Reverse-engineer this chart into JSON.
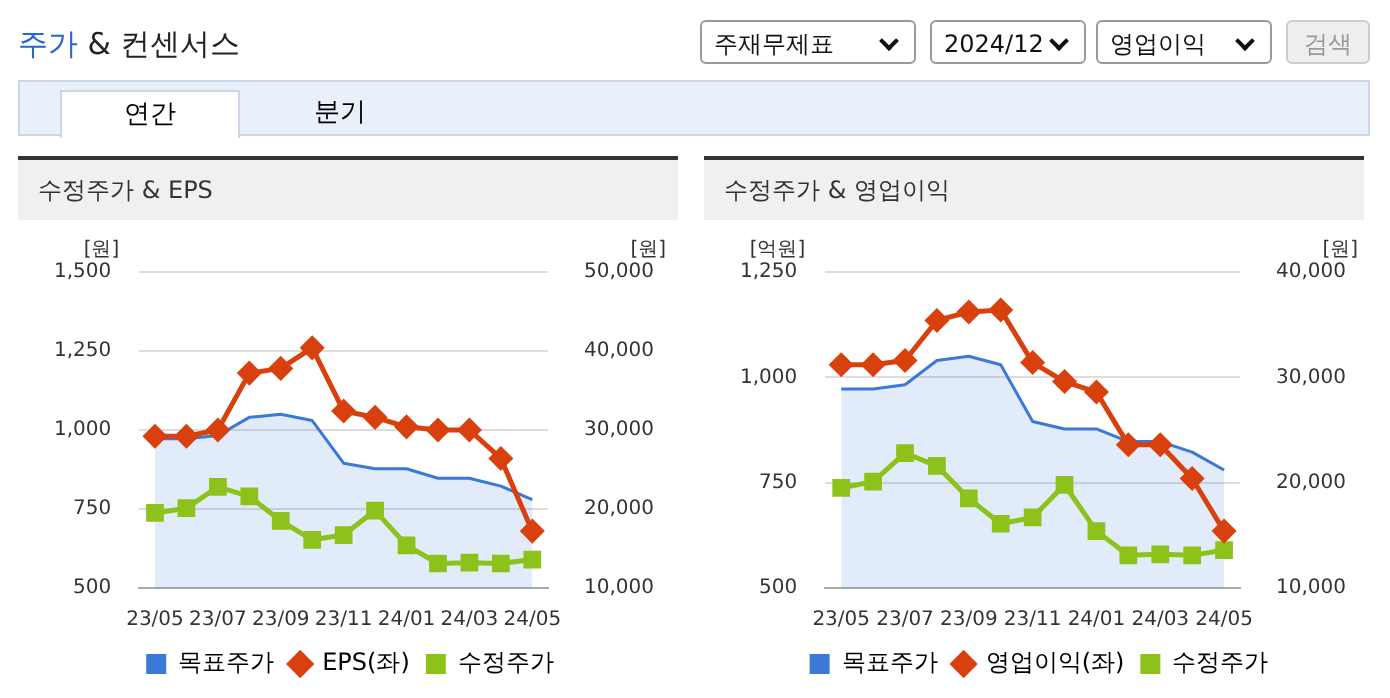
{
  "chart_data": [
    {
      "type": "line",
      "title": "수정주가 & EPS",
      "ylabel": "[원]",
      "y2label": "[원]",
      "annotations": [
        "주가 & 컨센서스",
        "주재무제표",
        "2024/12",
        "영업이익",
        "검색",
        "연간",
        "분기"
      ],
      "categories": [
        "23/05",
        null,
        "23/07",
        null,
        "23/09",
        null,
        "23/11",
        null,
        "24/01",
        null,
        "24/03",
        null,
        "24/05"
      ],
      "series": [
        {
          "name": "목표주가",
          "type": "area",
          "axis": "y2",
          "color": "#3b78d8",
          "marker": "none",
          "values": [
            28900,
            28900,
            29300,
            31600,
            32000,
            31200,
            25800,
            25100,
            25100,
            23900,
            23900,
            22900,
            21200
          ]
        },
        {
          "name": "EPS(좌)",
          "color": "#d8400e",
          "marker": "diamond",
          "values": [
            980,
            980,
            1000,
            1180,
            1195,
            1260,
            1060,
            1040,
            1010,
            1000,
            1000,
            910,
            680
          ]
        },
        {
          "name": "수정주가",
          "axis": "y2",
          "color": "#8cc21a",
          "marker": "square",
          "values": [
            19500,
            20100,
            22800,
            21600,
            18500,
            16100,
            16700,
            19800,
            15400,
            13100,
            13200,
            13100,
            13600
          ]
        }
      ],
      "ylim": [
        500,
        1500
      ],
      "yticks": [
        {
          "value": 500,
          "label": "500"
        },
        {
          "value": 750,
          "label": "750"
        },
        {
          "value": 1000,
          "label": "1,000"
        },
        {
          "value": 1250,
          "label": "1,250"
        },
        {
          "value": 1500,
          "label": "1,500"
        }
      ],
      "y2lim": [
        10000,
        50000
      ],
      "y2ticks": [
        {
          "value": 10000,
          "label": "10,000"
        },
        {
          "value": 20000,
          "label": "20,000"
        },
        {
          "value": 30000,
          "label": "30,000"
        },
        {
          "value": 40000,
          "label": "40,000"
        },
        {
          "value": 50000,
          "label": "50,000"
        }
      ],
      "grid": "y",
      "legend": "bottom"
    },
    {
      "type": "line",
      "title": "수정주가 & 영업이익",
      "ylabel": "[억원]",
      "y2label": "[원]",
      "categories": [
        "23/05",
        null,
        "23/07",
        null,
        "23/09",
        null,
        "23/11",
        null,
        "24/01",
        null,
        "24/03",
        null,
        "24/05"
      ],
      "series": [
        {
          "name": "목표주가",
          "type": "area",
          "axis": "y2",
          "color": "#3b78d8",
          "marker": "none",
          "values": [
            28900,
            28900,
            29300,
            31600,
            32000,
            31200,
            25800,
            25100,
            25100,
            23900,
            23900,
            22900,
            21200
          ]
        },
        {
          "name": "영업이익(좌)",
          "color": "#d8400e",
          "marker": "diamond",
          "values": [
            1030,
            1030,
            1040,
            1135,
            1155,
            1160,
            1035,
            990,
            965,
            840,
            840,
            760,
            635
          ]
        },
        {
          "name": "수정주가",
          "axis": "y2",
          "color": "#8cc21a",
          "marker": "square",
          "values": [
            19500,
            20100,
            22800,
            21600,
            18500,
            16100,
            16700,
            19800,
            15400,
            13100,
            13200,
            13100,
            13600
          ]
        }
      ],
      "ylim": [
        500,
        1250
      ],
      "yticks": [
        {
          "value": 500,
          "label": "500"
        },
        {
          "value": 750,
          "label": "750"
        },
        {
          "value": 1000,
          "label": "1,000"
        },
        {
          "value": 1250,
          "label": "1,250"
        }
      ],
      "y2lim": [
        10000,
        40000
      ],
      "y2ticks": [
        {
          "value": 10000,
          "label": "10,000"
        },
        {
          "value": 20000,
          "label": "20,000"
        },
        {
          "value": 30000,
          "label": "30,000"
        },
        {
          "value": 40000,
          "label": "40,000"
        }
      ],
      "grid": "y",
      "legend": "bottom"
    }
  ]
}
